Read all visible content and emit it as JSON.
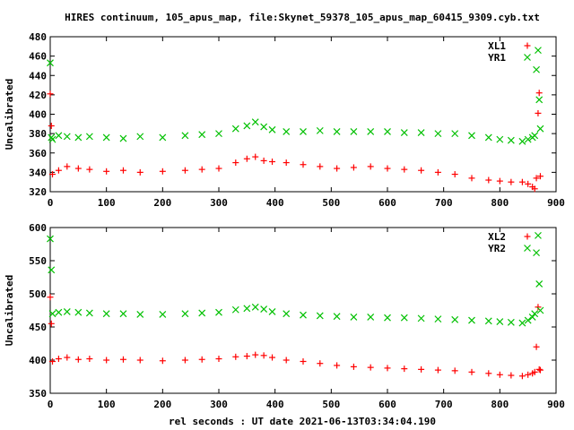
{
  "title": "HIRES continuum, 105_apus_map, file:Skynet_59378_105_apus_map_60415_9309.cyb.txt",
  "xlabel": "rel seconds : UT date 2021-06-13T03:34:04.190",
  "colors": {
    "red": "#ff0000",
    "green": "#00c000",
    "axis": "#000000",
    "background": "#ffffff"
  },
  "chart_data": [
    {
      "type": "scatter",
      "ylabel": "Uncalibrated",
      "xlim": [
        0,
        900
      ],
      "ylim": [
        320,
        480
      ],
      "xticks": [
        0,
        100,
        200,
        300,
        400,
        500,
        600,
        700,
        800,
        900
      ],
      "yticks": [
        320,
        340,
        360,
        380,
        400,
        420,
        440,
        460,
        480
      ],
      "legend_position": "top-right",
      "series": [
        {
          "name": "XL1",
          "marker": "plus",
          "color": "#ff0000",
          "x": [
            0,
            2,
            4,
            15,
            30,
            50,
            70,
            100,
            130,
            160,
            200,
            240,
            270,
            300,
            330,
            350,
            365,
            380,
            395,
            420,
            450,
            480,
            510,
            540,
            570,
            600,
            630,
            660,
            690,
            720,
            750,
            780,
            800,
            820,
            840,
            850,
            858,
            862,
            865,
            868,
            870,
            872
          ],
          "y": [
            421,
            388,
            338,
            342,
            346,
            344,
            343,
            341,
            342,
            340,
            341,
            342,
            343,
            344,
            350,
            354,
            356,
            352,
            351,
            350,
            348,
            346,
            344,
            345,
            346,
            344,
            343,
            342,
            340,
            338,
            334,
            332,
            331,
            330,
            330,
            328,
            325,
            323,
            334,
            401,
            422,
            336
          ]
        },
        {
          "name": "YR1",
          "marker": "cross",
          "color": "#00c000",
          "x": [
            0,
            2,
            4,
            15,
            30,
            50,
            70,
            100,
            130,
            160,
            200,
            240,
            270,
            300,
            330,
            350,
            365,
            380,
            395,
            420,
            450,
            480,
            510,
            540,
            570,
            600,
            630,
            660,
            690,
            720,
            750,
            780,
            800,
            820,
            840,
            850,
            858,
            862,
            865,
            868,
            870,
            872
          ],
          "y": [
            453,
            376,
            374,
            378,
            377,
            376,
            377,
            376,
            375,
            377,
            376,
            378,
            379,
            380,
            385,
            388,
            392,
            387,
            384,
            382,
            382,
            383,
            382,
            382,
            382,
            382,
            381,
            381,
            380,
            380,
            378,
            376,
            374,
            373,
            372,
            374,
            376,
            378,
            446,
            466,
            415,
            385
          ]
        }
      ]
    },
    {
      "type": "scatter",
      "ylabel": "Uncalibrated",
      "xlim": [
        0,
        900
      ],
      "ylim": [
        350,
        600
      ],
      "xticks": [
        0,
        100,
        200,
        300,
        400,
        500,
        600,
        700,
        800,
        900
      ],
      "yticks": [
        350,
        400,
        450,
        500,
        550,
        600
      ],
      "legend_position": "top-right",
      "series": [
        {
          "name": "XL2",
          "marker": "plus",
          "color": "#ff0000",
          "x": [
            0,
            2,
            4,
            15,
            30,
            50,
            70,
            100,
            130,
            160,
            200,
            240,
            270,
            300,
            330,
            350,
            365,
            380,
            395,
            420,
            450,
            480,
            510,
            540,
            570,
            600,
            630,
            660,
            690,
            720,
            750,
            780,
            800,
            820,
            840,
            850,
            858,
            862,
            865,
            868,
            870,
            872
          ],
          "y": [
            495,
            455,
            398,
            402,
            404,
            401,
            402,
            400,
            401,
            400,
            399,
            400,
            401,
            402,
            405,
            406,
            408,
            407,
            404,
            400,
            398,
            395,
            392,
            390,
            389,
            388,
            387,
            386,
            385,
            384,
            382,
            380,
            378,
            377,
            376,
            378,
            380,
            382,
            420,
            480,
            386,
            385
          ]
        },
        {
          "name": "YR2",
          "marker": "cross",
          "color": "#00c000",
          "x": [
            0,
            2,
            4,
            15,
            30,
            50,
            70,
            100,
            130,
            160,
            200,
            240,
            270,
            300,
            330,
            350,
            365,
            380,
            395,
            420,
            450,
            480,
            510,
            540,
            570,
            600,
            630,
            660,
            690,
            720,
            750,
            780,
            800,
            820,
            840,
            850,
            858,
            862,
            865,
            868,
            870,
            872
          ],
          "y": [
            583,
            536,
            470,
            472,
            473,
            472,
            471,
            470,
            470,
            469,
            469,
            470,
            471,
            472,
            476,
            478,
            480,
            477,
            473,
            470,
            468,
            467,
            466,
            465,
            465,
            464,
            464,
            463,
            462,
            461,
            460,
            459,
            458,
            457,
            456,
            460,
            465,
            470,
            562,
            588,
            515,
            475
          ]
        }
      ]
    }
  ]
}
